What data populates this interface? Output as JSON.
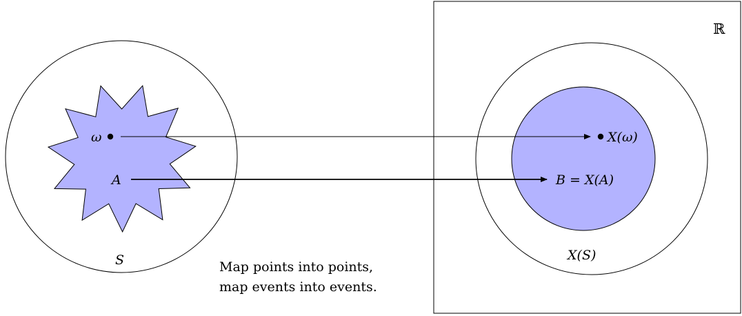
{
  "labels": {
    "omega": "ω",
    "A": "A",
    "S": "S",
    "X_omega": "X(ω)",
    "B_eq": "B = X(A)",
    "X_S": "X(S)",
    "reals": "ℝ"
  },
  "caption": {
    "line1": "Map points into points,",
    "line2": "map events into events."
  },
  "colors": {
    "fill": "#b3b3ff",
    "stroke": "#000000",
    "background": "#ffffff"
  }
}
